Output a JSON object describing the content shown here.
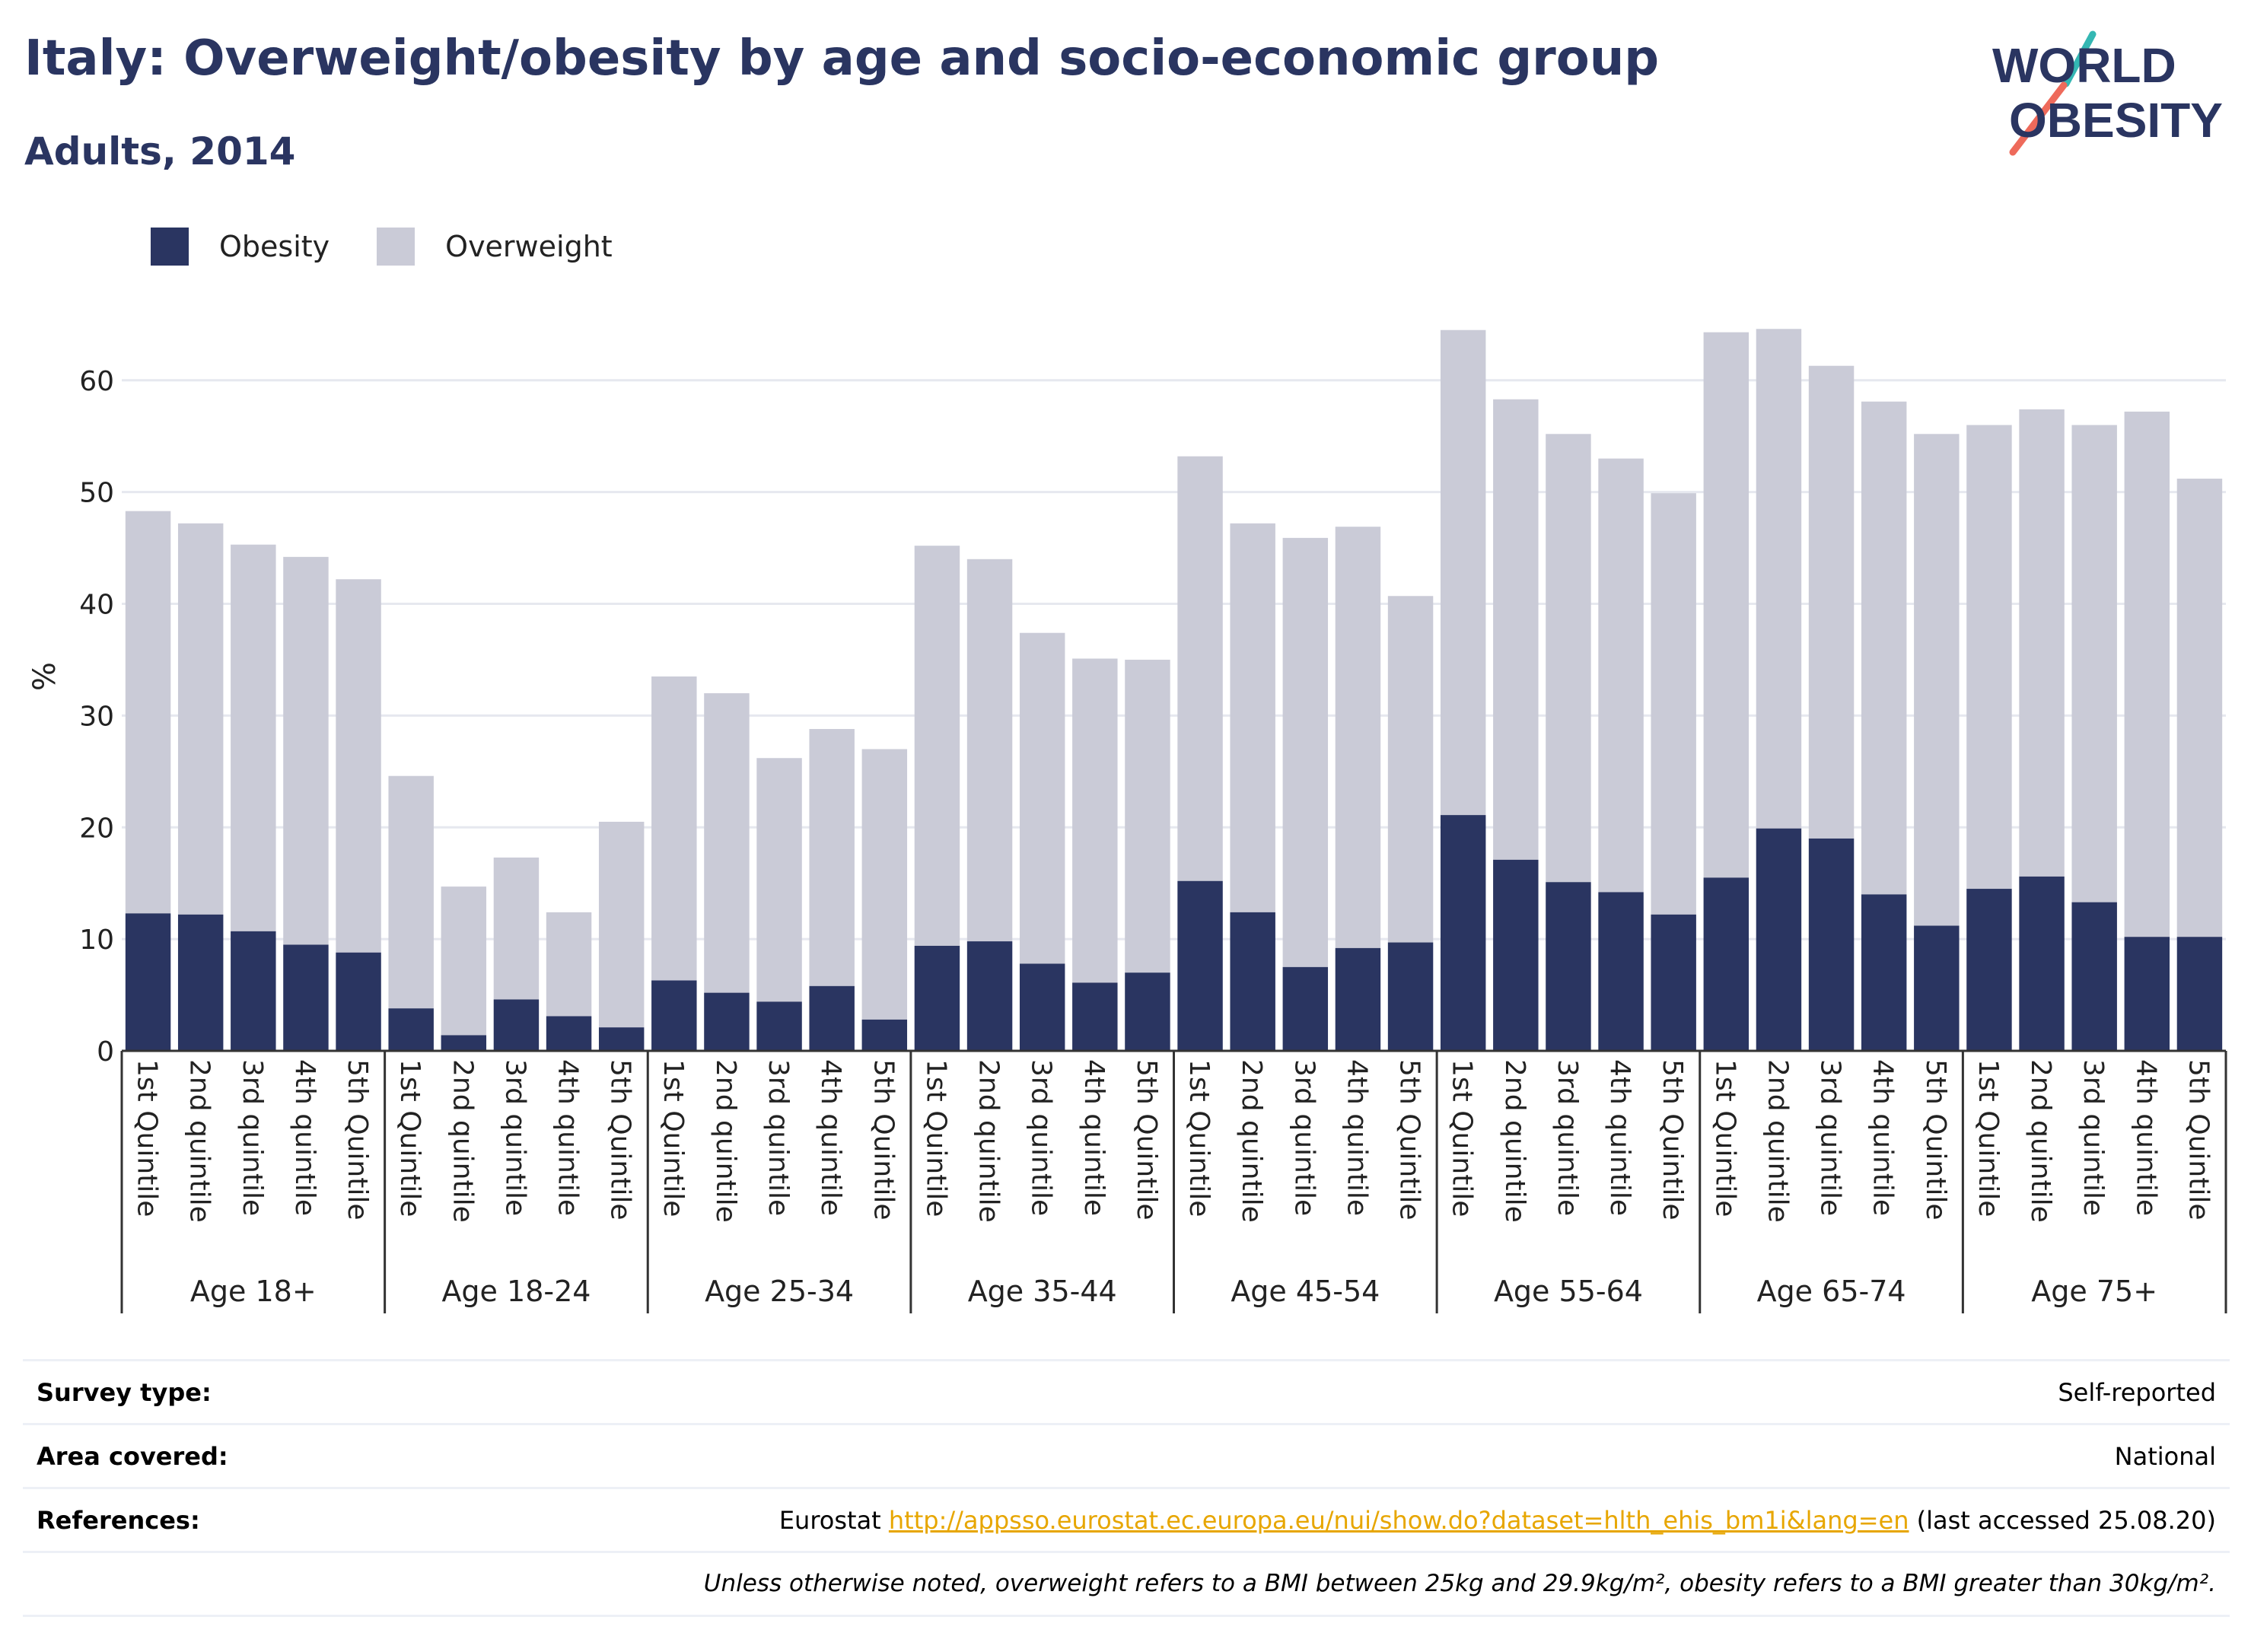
{
  "header": {
    "title": "Italy: Overweight/obesity by age and socio-economic group",
    "subtitle": "Adults, 2014",
    "logo_line1": "WORLD",
    "logo_line2": "OBESITY"
  },
  "colors": {
    "obesity": "#2a3561",
    "overweight": "#cacbd7",
    "grid": "#e6e8ef",
    "axis": "#333333",
    "logo_text": "#2a3561",
    "logo_slash_teal": "#34b7b3",
    "logo_slash_coral": "#ee6a5b",
    "link": "#e7a600"
  },
  "chart_data": {
    "type": "bar",
    "stacked": true,
    "ylabel": "%",
    "ylim": [
      0,
      67
    ],
    "yticks": [
      0,
      10,
      20,
      30,
      40,
      50,
      60
    ],
    "grid": true,
    "legend_position": "top-left",
    "groups": [
      {
        "label": "Age 18+",
        "categories": [
          "1st Quintile",
          "2nd quintile",
          "3rd quintile",
          "4th quintile",
          "5th Quintile"
        ],
        "obesity": [
          12.3,
          12.2,
          10.7,
          9.5,
          8.8
        ],
        "total": [
          48.3,
          47.2,
          45.3,
          44.2,
          42.2
        ]
      },
      {
        "label": "Age 18-24",
        "categories": [
          "1st Quintile",
          "2nd quintile",
          "3rd quintile",
          "4th quintile",
          "5th Quintile"
        ],
        "obesity": [
          3.8,
          1.4,
          4.6,
          3.1,
          2.1
        ],
        "total": [
          24.6,
          14.7,
          17.3,
          12.4,
          20.5
        ]
      },
      {
        "label": "Age 25-34",
        "categories": [
          "1st Quintile",
          "2nd quintile",
          "3rd quintile",
          "4th quintile",
          "5th Quintile"
        ],
        "obesity": [
          6.3,
          5.2,
          4.4,
          5.8,
          2.8
        ],
        "total": [
          33.5,
          32.0,
          26.2,
          28.8,
          27.0
        ]
      },
      {
        "label": "Age 35-44",
        "categories": [
          "1st Quintile",
          "2nd quintile",
          "3rd quintile",
          "4th quintile",
          "5th Quintile"
        ],
        "obesity": [
          9.4,
          9.8,
          7.8,
          6.1,
          7.0
        ],
        "total": [
          45.2,
          44.0,
          37.4,
          35.1,
          35.0
        ]
      },
      {
        "label": "Age 45-54",
        "categories": [
          "1st Quintile",
          "2nd quintile",
          "3rd quintile",
          "4th quintile",
          "5th Quintile"
        ],
        "obesity": [
          15.2,
          12.4,
          7.5,
          9.2,
          9.7
        ],
        "total": [
          53.2,
          47.2,
          45.9,
          46.9,
          40.7
        ]
      },
      {
        "label": "Age 55-64",
        "categories": [
          "1st Quintile",
          "2nd quintile",
          "3rd quintile",
          "4th quintile",
          "5th Quintile"
        ],
        "obesity": [
          21.1,
          17.1,
          15.1,
          14.2,
          12.2
        ],
        "total": [
          64.5,
          58.3,
          55.2,
          53.0,
          49.9
        ]
      },
      {
        "label": "Age 65-74",
        "categories": [
          "1st Quintile",
          "2nd quintile",
          "3rd quintile",
          "4th quintile",
          "5th Quintile"
        ],
        "obesity": [
          15.5,
          19.9,
          19.0,
          14.0,
          11.2
        ],
        "total": [
          64.3,
          64.6,
          61.3,
          58.1,
          55.2
        ]
      },
      {
        "label": "Age 75+",
        "categories": [
          "1st Quintile",
          "2nd quintile",
          "3rd quintile",
          "4th quintile",
          "5th Quintile"
        ],
        "obesity": [
          14.5,
          15.6,
          13.3,
          10.2,
          10.2
        ],
        "total": [
          56.0,
          57.4,
          56.0,
          57.2,
          51.2
        ]
      }
    ],
    "series": [
      {
        "name": "Obesity"
      },
      {
        "name": "Overweight"
      }
    ]
  },
  "info": {
    "survey_label": "Survey type:",
    "survey_value": "Self-reported",
    "area_label": "Area covered:",
    "area_value": "National",
    "refs_label": "References:",
    "refs_prefix": "Eurostat ",
    "refs_link": "http://appsso.eurostat.ec.europa.eu/nui/show.do?dataset=hlth_ehis_bm1i&lang=en",
    "refs_suffix": " (last accessed 25.08.20)",
    "note": "Unless otherwise noted, overweight refers to a BMI between 25kg and 29.9kg/m², obesity refers to a BMI greater than 30kg/m²."
  }
}
